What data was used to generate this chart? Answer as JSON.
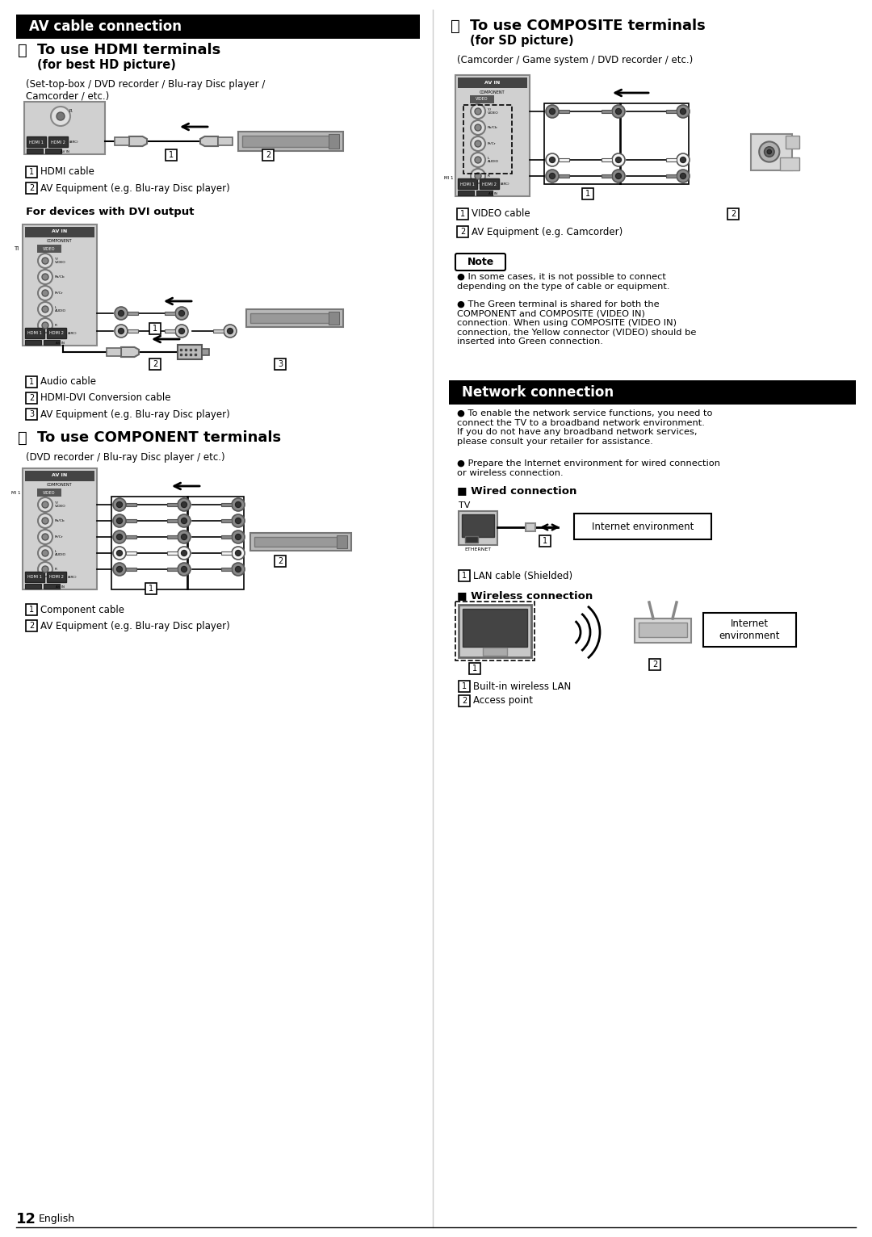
{
  "bg_color": "#ffffff",
  "left": {
    "section_title": "AV cable connection",
    "A_circle": "Ⓐ",
    "A_title": "To use HDMI terminals",
    "A_sub": "(for best HD picture)",
    "A_desc": "(Set-top-box / DVD recorder / Blu-ray Disc player /\nCamcorder / etc.)",
    "A_label1": "HDMI cable",
    "A_label2": "AV Equipment (e.g. Blu-ray Disc player)",
    "dvi_title": "For devices with DVI output",
    "dvi_label1": "Audio cable",
    "dvi_label2": "HDMI-DVI Conversion cable",
    "dvi_label3": "AV Equipment (e.g. Blu-ray Disc player)",
    "B_circle": "Ⓑ",
    "B_title": "To use COMPONENT terminals",
    "B_desc": "(DVD recorder / Blu-ray Disc player / etc.)",
    "B_label1": "Component cable",
    "B_label2": "AV Equipment (e.g. Blu-ray Disc player)"
  },
  "right": {
    "C_circle": "Ⓒ",
    "C_title": "To use COMPOSITE terminals",
    "C_sub": "(for SD picture)",
    "C_desc": "(Camcorder / Game system / DVD recorder / etc.)",
    "C_label1": "VIDEO cable",
    "C_label2": "AV Equipment (e.g. Camcorder)",
    "note_title": "Note",
    "note1": "In some cases, it is not possible to connect\ndepending on the type of cable or equipment.",
    "note2": "The Green terminal is shared for both the\nCOMPONENT and COMPOSITE (VIDEO IN)\nconnection. When using COMPOSITE (VIDEO IN)\nconnection, the Yellow connector (VIDEO) should be\ninserted into Green connection.",
    "net_title": "Network connection",
    "net1": "To enable the network service functions, you need to\nconnect the TV to a broadband network environment.\nIf you do not have any broadband network services,\nplease consult your retailer for assistance.",
    "net2": "Prepare the Internet environment for wired connection\nor wireless connection.",
    "wired_title": "Wired connection",
    "wired_tv": "TV",
    "wired_label1": "LAN cable (Shielded)",
    "internet_box": "Internet environment",
    "wireless_title": "Wireless connection",
    "wireless_label1": "Built-in wireless LAN",
    "wireless_label2": "Access point",
    "internet_box2": "Internet\nenvironment"
  },
  "page_num": "12",
  "page_lang": "English"
}
